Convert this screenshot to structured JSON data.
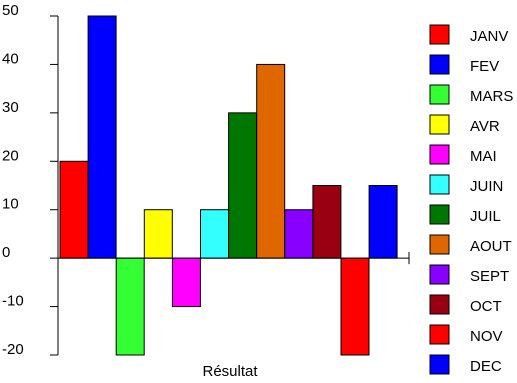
{
  "chart_data": {
    "type": "bar",
    "title": "",
    "xlabel": "Résultat",
    "ylabel": "",
    "ylim": [
      -20,
      50
    ],
    "yticks": [
      50,
      40,
      30,
      20,
      10,
      0,
      -10,
      -20
    ],
    "grid": false,
    "legend_position": "right",
    "categories": [
      "JANV",
      "FEV",
      "MARS",
      "AVR",
      "MAI",
      "JUIN",
      "JUIL",
      "AOUT",
      "SEPT",
      "OCT",
      "NOV",
      "DEC"
    ],
    "values": [
      20,
      50,
      -20,
      10,
      -10,
      10,
      30,
      40,
      10,
      15,
      -20,
      15
    ],
    "colors": [
      "#ff0000",
      "#0000ff",
      "#33ff33",
      "#ffff00",
      "#ff00ff",
      "#33ffff",
      "#007700",
      "#e06600",
      "#8800ff",
      "#990011",
      "#ff0000",
      "#0000ff"
    ]
  }
}
